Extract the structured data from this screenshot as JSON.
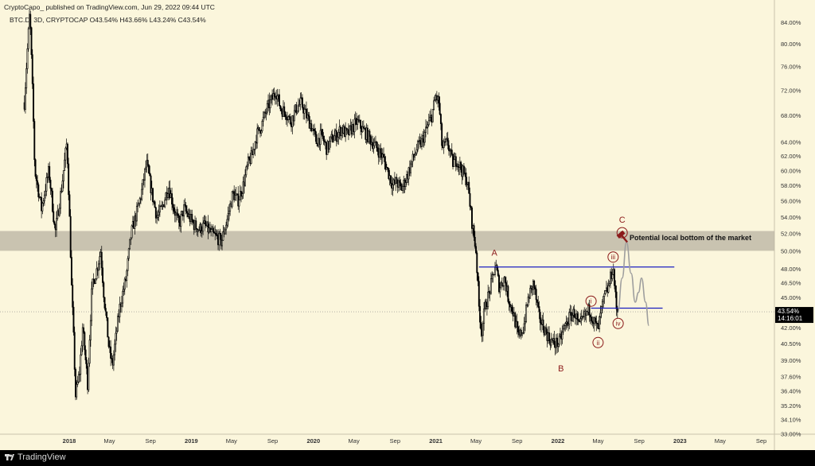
{
  "header": {
    "publisher_line": "CryptoCapo_ published on TradingView.com, Jun 29, 2022 09:44 UTC",
    "symbol_line": "BTC.D, 3D, CRYPTOCAP",
    "ohlc": {
      "o": "O43.54%",
      "h": "H43.66%",
      "l": "L43.24%",
      "c": "C43.54%"
    }
  },
  "footer": {
    "brand": "TradingView"
  },
  "colors": {
    "background": "#fbf6dc",
    "candle": "#000000",
    "zone_fill": "#b8b2a1",
    "level_line": "#1b1fc0",
    "wave_label": "#8b1a1a",
    "projection": "#9e9e9e",
    "axis_text": "#333333",
    "price_badge": "#000000"
  },
  "chart_data": {
    "type": "candlestick",
    "instrument": "BTC.D",
    "timeframe": "3D",
    "x_ticks": [
      "2018",
      "May",
      "Sep",
      "2019",
      "May",
      "Sep",
      "2020",
      "May",
      "Sep",
      "2021",
      "May",
      "Sep",
      "2022",
      "May",
      "Sep",
      "2023",
      "May",
      "Sep"
    ],
    "x_tick_dates": [
      "2018-01-01",
      "2018-05-01",
      "2018-09-01",
      "2019-01-01",
      "2019-05-01",
      "2019-09-01",
      "2020-01-01",
      "2020-05-01",
      "2020-09-01",
      "2021-01-01",
      "2021-05-01",
      "2021-09-01",
      "2022-01-01",
      "2022-05-01",
      "2022-09-01",
      "2023-01-01",
      "2023-05-01",
      "2023-09-01"
    ],
    "y_scale": "log",
    "y_ticks": [
      "84.00%",
      "80.00%",
      "76.00%",
      "72.00%",
      "68.00%",
      "64.00%",
      "62.00%",
      "60.00%",
      "58.00%",
      "56.00%",
      "54.00%",
      "52.00%",
      "50.00%",
      "48.00%",
      "46.50%",
      "45.00%",
      "42.00%",
      "40.50%",
      "39.00%",
      "37.60%",
      "36.40%",
      "35.20%",
      "34.10%",
      "33.00%"
    ],
    "y_range": [
      33,
      86
    ],
    "last_price": "43.54%",
    "countdown": "14:16:01",
    "series": [
      {
        "kind": "candle-path",
        "points": [
          [
            "2017-08-20",
            70
          ],
          [
            "2017-09-05",
            86
          ],
          [
            "2017-09-20",
            60
          ],
          [
            "2017-10-10",
            55
          ],
          [
            "2017-11-01",
            60
          ],
          [
            "2017-11-20",
            52
          ],
          [
            "2017-12-10",
            58
          ],
          [
            "2017-12-25",
            64
          ],
          [
            "2018-01-08",
            46
          ],
          [
            "2018-01-20",
            36
          ],
          [
            "2018-02-01",
            38
          ],
          [
            "2018-02-10",
            42
          ],
          [
            "2018-02-25",
            37
          ],
          [
            "2018-03-10",
            46
          ],
          [
            "2018-03-25",
            48
          ],
          [
            "2018-04-05",
            50
          ],
          [
            "2018-04-15",
            45
          ],
          [
            "2018-04-30",
            40
          ],
          [
            "2018-05-10",
            38.5
          ],
          [
            "2018-05-20",
            41
          ],
          [
            "2018-06-01",
            44
          ],
          [
            "2018-06-20",
            47
          ],
          [
            "2018-07-05",
            52
          ],
          [
            "2018-07-25",
            55
          ],
          [
            "2018-08-05",
            57
          ],
          [
            "2018-08-20",
            61
          ],
          [
            "2018-09-05",
            57
          ],
          [
            "2018-09-20",
            54
          ],
          [
            "2018-10-05",
            55
          ],
          [
            "2018-10-25",
            58
          ],
          [
            "2018-11-10",
            55
          ],
          [
            "2018-11-25",
            53
          ],
          [
            "2018-12-10",
            55
          ],
          [
            "2018-12-25",
            54
          ],
          [
            "2019-01-10",
            53
          ],
          [
            "2019-01-25",
            52.5
          ],
          [
            "2019-02-10",
            53
          ],
          [
            "2019-03-01",
            52
          ],
          [
            "2019-03-20",
            51.5
          ],
          [
            "2019-04-01",
            51
          ],
          [
            "2019-04-20",
            54
          ],
          [
            "2019-05-05",
            57
          ],
          [
            "2019-05-20",
            56
          ],
          [
            "2019-06-05",
            58
          ],
          [
            "2019-06-20",
            61
          ],
          [
            "2019-07-01",
            62
          ],
          [
            "2019-07-15",
            65
          ],
          [
            "2019-07-30",
            66.5
          ],
          [
            "2019-08-15",
            69
          ],
          [
            "2019-08-30",
            70.5
          ],
          [
            "2019-09-10",
            72
          ],
          [
            "2019-09-25",
            69
          ],
          [
            "2019-10-10",
            68.5
          ],
          [
            "2019-10-25",
            67
          ],
          [
            "2019-11-10",
            69
          ],
          [
            "2019-11-25",
            70
          ],
          [
            "2019-12-10",
            68
          ],
          [
            "2019-12-25",
            66.5
          ],
          [
            "2020-01-10",
            64
          ],
          [
            "2020-01-25",
            65
          ],
          [
            "2020-02-10",
            63
          ],
          [
            "2020-02-25",
            64.5
          ],
          [
            "2020-03-10",
            65
          ],
          [
            "2020-03-25",
            66
          ],
          [
            "2020-04-10",
            65
          ],
          [
            "2020-04-25",
            66
          ],
          [
            "2020-05-10",
            67
          ],
          [
            "2020-05-25",
            66
          ],
          [
            "2020-06-10",
            65
          ],
          [
            "2020-06-25",
            64
          ],
          [
            "2020-07-10",
            63
          ],
          [
            "2020-07-25",
            62
          ],
          [
            "2020-08-10",
            60
          ],
          [
            "2020-08-25",
            58
          ],
          [
            "2020-09-05",
            58.5
          ],
          [
            "2020-09-20",
            57.5
          ],
          [
            "2020-10-05",
            59
          ],
          [
            "2020-10-20",
            61
          ],
          [
            "2020-11-05",
            63
          ],
          [
            "2020-11-20",
            64
          ],
          [
            "2020-12-05",
            66
          ],
          [
            "2020-12-20",
            68
          ],
          [
            "2021-01-01",
            71
          ],
          [
            "2021-01-10",
            70
          ],
          [
            "2021-01-20",
            63
          ],
          [
            "2021-02-05",
            64
          ],
          [
            "2021-02-20",
            61
          ],
          [
            "2021-03-05",
            61.5
          ],
          [
            "2021-03-20",
            60
          ],
          [
            "2021-04-05",
            58.5
          ],
          [
            "2021-04-20",
            53
          ],
          [
            "2021-05-01",
            50
          ],
          [
            "2021-05-10",
            44
          ],
          [
            "2021-05-18",
            41.5
          ],
          [
            "2021-05-28",
            44
          ],
          [
            "2021-06-10",
            45.5
          ],
          [
            "2021-06-20",
            47
          ],
          [
            "2021-06-28",
            48.5
          ],
          [
            "2021-07-10",
            46
          ],
          [
            "2021-07-25",
            47
          ],
          [
            "2021-08-05",
            45
          ],
          [
            "2021-08-20",
            43.5
          ],
          [
            "2021-09-05",
            41
          ],
          [
            "2021-09-20",
            42
          ],
          [
            "2021-10-05",
            45
          ],
          [
            "2021-10-20",
            46.5
          ],
          [
            "2021-11-05",
            43
          ],
          [
            "2021-11-20",
            42
          ],
          [
            "2021-12-05",
            41
          ],
          [
            "2021-12-20",
            40.5
          ],
          [
            "2022-01-05",
            40.6
          ],
          [
            "2022-01-20",
            42
          ],
          [
            "2022-02-05",
            43
          ],
          [
            "2022-02-20",
            43.5
          ],
          [
            "2022-03-05",
            42
          ],
          [
            "2022-03-20",
            43
          ],
          [
            "2022-04-05",
            43.8
          ],
          [
            "2022-04-20",
            42.5
          ],
          [
            "2022-05-01",
            41.8
          ],
          [
            "2022-05-10",
            43.5
          ],
          [
            "2022-05-20",
            45
          ],
          [
            "2022-06-01",
            46
          ],
          [
            "2022-06-10",
            47.5
          ],
          [
            "2022-06-15",
            48.2
          ],
          [
            "2022-06-20",
            46
          ],
          [
            "2022-06-24",
            44
          ],
          [
            "2022-06-29",
            43.54
          ]
        ]
      },
      {
        "kind": "projection",
        "points": [
          [
            "2022-06-29",
            43.54
          ],
          [
            "2022-07-12",
            47
          ],
          [
            "2022-07-25",
            51
          ],
          [
            "2022-08-08",
            47.5
          ],
          [
            "2022-08-20",
            44.5
          ],
          [
            "2022-08-30",
            45.5
          ],
          [
            "2022-09-08",
            47
          ],
          [
            "2022-09-20",
            44.5
          ],
          [
            "2022-09-30",
            42.2
          ]
        ]
      }
    ],
    "zone": {
      "from": 50.0,
      "to": 52.3
    },
    "levels": [
      {
        "value": 48.2,
        "from": "2021-05-10",
        "to": "2022-12-15"
      },
      {
        "value": 43.9,
        "from": "2022-04-10",
        "to": "2022-11-10"
      }
    ],
    "wave_labels": [
      {
        "text": "A",
        "date": "2021-06-25",
        "value": 49.8,
        "circled": false
      },
      {
        "text": "B",
        "date": "2022-01-10",
        "value": 38.3,
        "circled": false
      },
      {
        "text": "C",
        "date": "2022-07-12",
        "value": 53.7,
        "circled": false
      },
      {
        "text": "i",
        "date": "2022-04-10",
        "value": 44.6,
        "circled": true
      },
      {
        "text": "ii",
        "date": "2022-05-01",
        "value": 40.6,
        "circled": true
      },
      {
        "text": "iii",
        "date": "2022-06-15",
        "value": 49.3,
        "circled": true
      },
      {
        "text": "iv",
        "date": "2022-06-30",
        "value": 42.4,
        "circled": true
      },
      {
        "text": "v",
        "date": "2022-07-12",
        "value": 52.1,
        "circled": true
      }
    ],
    "annotation": {
      "text": "Potential local bottom of the market",
      "date": "2022-07-20",
      "value": 51.5
    }
  }
}
